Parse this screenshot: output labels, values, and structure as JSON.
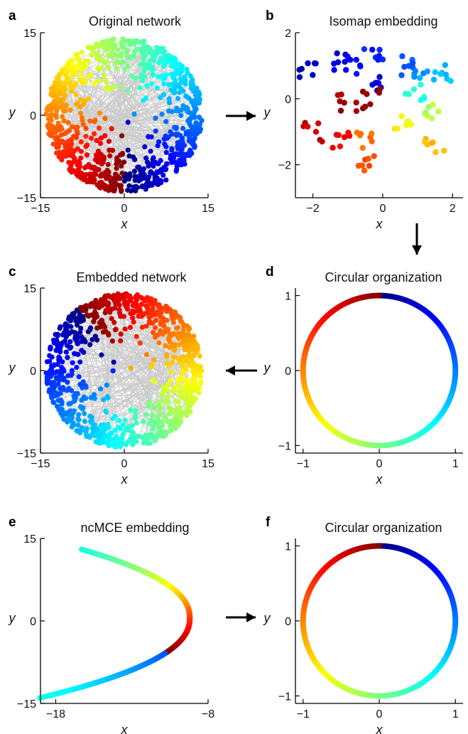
{
  "chart_data": [
    {
      "panel": "a",
      "type": "scatter",
      "title": "Original network",
      "xlabel": "x",
      "ylabel": "y",
      "xlim": [
        -15,
        15
      ],
      "ylim": [
        -15,
        15
      ],
      "xticks": [
        "−15",
        "0",
        "15"
      ],
      "yticks": [
        "15",
        "0",
        "−15"
      ],
      "points": "dense disk of ~1000 nodes (radius ≈ 14) colored by angular position (jet colormap), connected by gray edges"
    },
    {
      "panel": "b",
      "type": "scatter",
      "title": "Isomap embedding",
      "xlabel": "x",
      "ylabel": "y",
      "xlim": [
        -2.5,
        2.3
      ],
      "ylim": [
        -3,
        2
      ],
      "xticks": [
        "−2",
        "0",
        "2"
      ],
      "yticks": [
        "2",
        "0",
        "−2"
      ]
    },
    {
      "panel": "c",
      "type": "scatter",
      "title": "Embedded network",
      "xlabel": "x",
      "ylabel": "y",
      "xlim": [
        -15,
        15
      ],
      "ylim": [
        -15,
        15
      ],
      "xticks": [
        "−15",
        "0",
        "15"
      ],
      "yticks": [
        "15",
        "0",
        "−15"
      ]
    },
    {
      "panel": "d",
      "type": "scatter",
      "title": "Circular organization",
      "xlabel": "x",
      "ylabel": "y",
      "xlim": [
        -1.1,
        1.1
      ],
      "ylim": [
        -1.1,
        1.1
      ],
      "xticks": [
        "−1",
        "0",
        "1"
      ],
      "yticks": [
        "1",
        "0",
        "−1"
      ]
    },
    {
      "panel": "e",
      "type": "scatter",
      "title": "ncMCE embedding",
      "xlabel": "x",
      "ylabel": "y",
      "xlim": [
        -19,
        -8
      ],
      "ylim": [
        -15,
        15
      ],
      "xticks": [
        "−18",
        "−8"
      ],
      "yticks": [
        "15",
        "0",
        "−15"
      ]
    },
    {
      "panel": "f",
      "type": "scatter",
      "title": "Circular organization",
      "xlabel": "x",
      "ylabel": "y",
      "xlim": [
        -1.1,
        1.1
      ],
      "ylim": [
        -1.1,
        1.1
      ],
      "xticks": [
        "−1",
        "0",
        "1"
      ],
      "yticks": [
        "1",
        "0",
        "−1"
      ]
    }
  ]
}
